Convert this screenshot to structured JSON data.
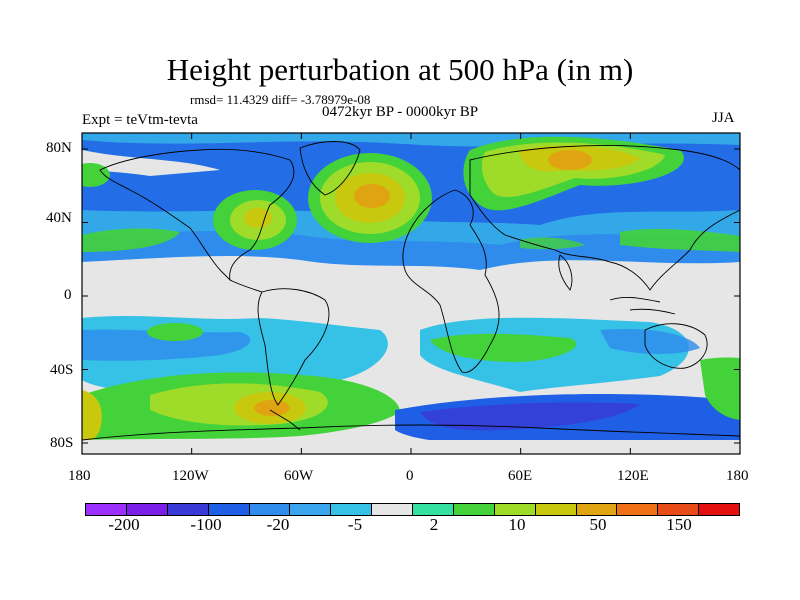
{
  "title": "Height perturbation at 500 hPa (in m)",
  "stats": "rmsd= 11.4329 diff= -3.78979e-08",
  "expt": "Expt = teVtm-tevta",
  "period": "0472kyr BP - 0000kyr BP",
  "season": "JJA",
  "lat_labels": [
    "80N",
    "40N",
    "0",
    "40S",
    "80S"
  ],
  "lon_labels": [
    "180",
    "120W",
    "60W",
    "0",
    "60E",
    "120E",
    "180"
  ],
  "colorbar": {
    "colors": [
      "#9b30ff",
      "#7b1fe6",
      "#3a3ad6",
      "#1f5fe6",
      "#2f8bec",
      "#3aa5ef",
      "#36c1e6",
      "#e6e6e6",
      "#33e0a0",
      "#43d23a",
      "#9fdc2a",
      "#c8c80f",
      "#e0a412",
      "#f07018",
      "#e84a18",
      "#e41010"
    ],
    "labels": [
      "-200",
      "-100",
      "-20",
      "-5",
      "2",
      "10",
      "50",
      "150"
    ]
  }
}
